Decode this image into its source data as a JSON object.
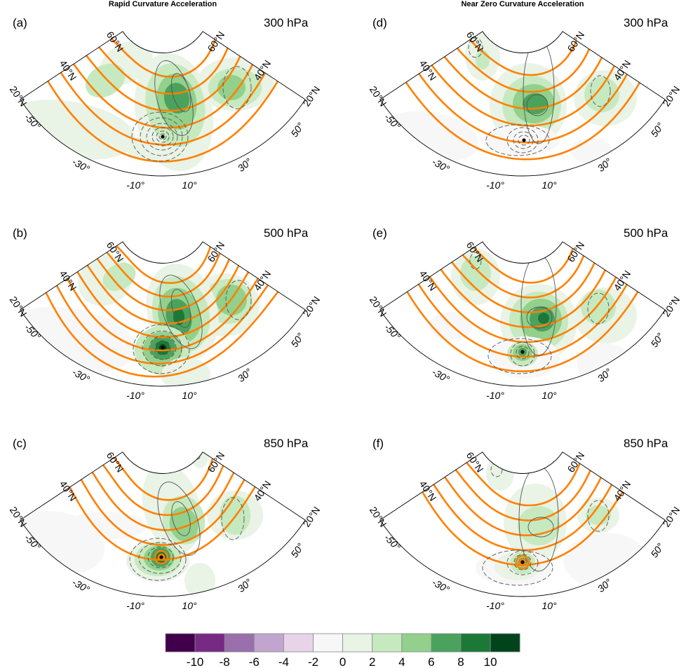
{
  "figure": {
    "column_titles": [
      "Rapid Curvature Acceleration",
      "Near Zero Curvature Acceleration"
    ]
  },
  "panels": [
    {
      "id": "(a)",
      "level": "300 hPa",
      "column": 0,
      "row": 0
    },
    {
      "id": "(b)",
      "level": "500 hPa",
      "column": 0,
      "row": 1
    },
    {
      "id": "(c)",
      "level": "850 hPa",
      "column": 0,
      "row": 2
    },
    {
      "id": "(d)",
      "level": "300 hPa",
      "column": 1,
      "row": 0
    },
    {
      "id": "(e)",
      "level": "500 hPa",
      "column": 1,
      "row": 1
    },
    {
      "id": "(f)",
      "level": "850 hPa",
      "column": 1,
      "row": 2
    }
  ],
  "axes": {
    "lat_labels_left": [
      "60°N",
      "40°N",
      "20°N"
    ],
    "lat_labels_right": [
      "60°N",
      "40°N",
      "20°N"
    ],
    "lon_labels": [
      "-50°",
      "-30°",
      "-10°",
      "10°",
      "30°",
      "50°"
    ]
  },
  "chart_data": {
    "type": "heatmap",
    "title": "Rapid Curvature Acceleration / Near Zero Curvature Acceleration",
    "projection": "polar sector, 20°N–70°N, -60° to 60° relative longitude",
    "colorbar": {
      "ticks": [
        "-10",
        "-8",
        "-6",
        "-4",
        "-2",
        "0",
        "2",
        "4",
        "6",
        "8",
        "10"
      ],
      "levels": [
        -10,
        -8,
        -6,
        -4,
        -2,
        0,
        2,
        4,
        6,
        8,
        10
      ],
      "colors": [
        "#40004b",
        "#762a83",
        "#9970ab",
        "#c2a5cf",
        "#e7d4e8",
        "#f7f7f7",
        "#e9f3e6",
        "#c7e9c0",
        "#92d08c",
        "#4ba25d",
        "#1b7837",
        "#00441b"
      ]
    },
    "overlay_colors": {
      "height_contours": "#ff8000",
      "positive_contours": "#555555",
      "negative_contours_dashed": "#555555"
    }
  }
}
